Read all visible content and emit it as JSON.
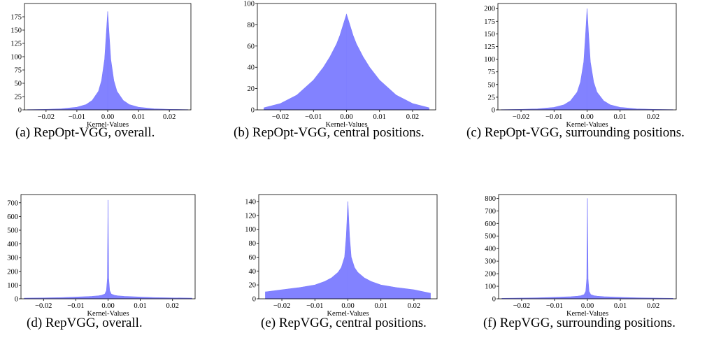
{
  "chart_data": [
    {
      "id": "a",
      "type": "area",
      "caption": "(a) RepOpt-VGG, overall.",
      "xlabel": "Kernel-Values",
      "ylabel": "",
      "xlim": [
        -0.027,
        0.027
      ],
      "ylim": [
        0,
        200
      ],
      "xticks": [
        -0.02,
        -0.01,
        0.0,
        0.01,
        0.02
      ],
      "xtick_labels": [
        "−0.02",
        "−0.01",
        "0.00",
        "0.01",
        "0.02"
      ],
      "yticks": [
        0,
        25,
        50,
        75,
        100,
        125,
        150,
        175
      ],
      "ytick_labels": [
        "0",
        "25",
        "50",
        "75",
        "100",
        "125",
        "150",
        "175"
      ],
      "color": "#7b7bff",
      "grid": false,
      "x": [
        -0.026,
        -0.02,
        -0.015,
        -0.01,
        -0.007,
        -0.005,
        -0.003,
        -0.002,
        -0.001,
        -0.0005,
        0.0,
        0.0005,
        0.001,
        0.002,
        0.003,
        0.005,
        0.007,
        0.01,
        0.015,
        0.02,
        0.026
      ],
      "y": [
        0.5,
        1,
        2,
        5,
        10,
        18,
        35,
        55,
        95,
        140,
        185,
        140,
        95,
        55,
        35,
        18,
        10,
        5,
        2,
        1,
        0.5
      ]
    },
    {
      "id": "b",
      "type": "area",
      "caption": "(b) RepOpt-VGG, central positions.",
      "xlabel": "Kernel-Values",
      "ylabel": "",
      "xlim": [
        -0.027,
        0.027
      ],
      "ylim": [
        0,
        100
      ],
      "xticks": [
        -0.02,
        -0.01,
        0.0,
        0.01,
        0.02
      ],
      "xtick_labels": [
        "−0.02",
        "−0.01",
        "0.00",
        "0.01",
        "0.02"
      ],
      "yticks": [
        0,
        20,
        40,
        60,
        80,
        100
      ],
      "ytick_labels": [
        "0",
        "20",
        "40",
        "60",
        "80",
        "100"
      ],
      "color": "#7b7bff",
      "grid": false,
      "x": [
        -0.025,
        -0.02,
        -0.015,
        -0.01,
        -0.007,
        -0.005,
        -0.003,
        -0.002,
        -0.001,
        0.0,
        0.001,
        0.002,
        0.003,
        0.005,
        0.007,
        0.01,
        0.015,
        0.02,
        0.025
      ],
      "y": [
        2,
        6,
        14,
        28,
        40,
        50,
        62,
        70,
        80,
        90,
        80,
        70,
        62,
        50,
        40,
        28,
        14,
        6,
        2
      ]
    },
    {
      "id": "c",
      "type": "area",
      "caption": "(c) RepOpt-VGG, surrounding positions.",
      "xlabel": "Kernel-Values",
      "ylabel": "",
      "xlim": [
        -0.027,
        0.027
      ],
      "ylim": [
        0,
        210
      ],
      "xticks": [
        -0.02,
        -0.01,
        0.0,
        0.01,
        0.02
      ],
      "xtick_labels": [
        "−0.02",
        "−0.01",
        "0.00",
        "0.01",
        "0.02"
      ],
      "yticks": [
        0,
        25,
        50,
        75,
        100,
        125,
        150,
        175,
        200
      ],
      "ytick_labels": [
        "0",
        "25",
        "50",
        "75",
        "100",
        "125",
        "150",
        "175",
        "200"
      ],
      "color": "#7b7bff",
      "grid": false,
      "x": [
        -0.026,
        -0.02,
        -0.015,
        -0.01,
        -0.007,
        -0.005,
        -0.003,
        -0.002,
        -0.001,
        -0.0005,
        0.0,
        0.0005,
        0.001,
        0.002,
        0.003,
        0.005,
        0.007,
        0.01,
        0.015,
        0.02,
        0.026
      ],
      "y": [
        0.5,
        1,
        2,
        5,
        10,
        18,
        35,
        55,
        95,
        145,
        200,
        145,
        95,
        55,
        35,
        18,
        10,
        5,
        2,
        1,
        0.5
      ]
    },
    {
      "id": "d",
      "type": "area",
      "caption": "(d) RepVGG, overall.",
      "xlabel": "Kernel-Values",
      "ylabel": "",
      "xlim": [
        -0.027,
        0.027
      ],
      "ylim": [
        0,
        760
      ],
      "xticks": [
        -0.02,
        -0.01,
        0.0,
        0.01,
        0.02
      ],
      "xtick_labels": [
        "−0.02",
        "−0.01",
        "0.00",
        "0.01",
        "0.02"
      ],
      "yticks": [
        0,
        100,
        200,
        300,
        400,
        500,
        600,
        700
      ],
      "ytick_labels": [
        "0",
        "100",
        "200",
        "300",
        "400",
        "500",
        "600",
        "700"
      ],
      "color": "#7b7bff",
      "grid": false,
      "x": [
        -0.026,
        -0.02,
        -0.015,
        -0.01,
        -0.005,
        -0.003,
        -0.002,
        -0.001,
        -0.0005,
        -0.0002,
        0.0,
        0.0002,
        0.0005,
        0.001,
        0.002,
        0.003,
        0.005,
        0.01,
        0.015,
        0.02,
        0.026
      ],
      "y": [
        5,
        7,
        9,
        13,
        18,
        22,
        26,
        35,
        60,
        150,
        720,
        150,
        60,
        35,
        26,
        22,
        18,
        13,
        9,
        7,
        5
      ]
    },
    {
      "id": "e",
      "type": "area",
      "caption": "(e) RepVGG, central positions.",
      "xlabel": "Kernel-Values",
      "ylabel": "",
      "xlim": [
        -0.027,
        0.027
      ],
      "ylim": [
        0,
        150
      ],
      "xticks": [
        -0.02,
        -0.01,
        0.0,
        0.01,
        0.02
      ],
      "xtick_labels": [
        "−0.02",
        "−0.01",
        "0.00",
        "0.01",
        "0.02"
      ],
      "yticks": [
        0,
        20,
        40,
        60,
        80,
        100,
        120,
        140
      ],
      "ytick_labels": [
        "0",
        "20",
        "40",
        "60",
        "80",
        "100",
        "120",
        "140"
      ],
      "color": "#7b7bff",
      "grid": false,
      "x": [
        -0.025,
        -0.02,
        -0.015,
        -0.01,
        -0.007,
        -0.005,
        -0.003,
        -0.002,
        -0.001,
        -0.0005,
        0.0,
        0.0005,
        0.001,
        0.002,
        0.003,
        0.005,
        0.007,
        0.01,
        0.015,
        0.02,
        0.025
      ],
      "y": [
        10,
        13,
        16,
        20,
        25,
        30,
        38,
        45,
        60,
        90,
        140,
        90,
        60,
        45,
        38,
        30,
        25,
        20,
        16,
        13,
        8
      ]
    },
    {
      "id": "f",
      "type": "area",
      "caption": "(f) RepVGG, surrounding positions.",
      "xlabel": "Kernel-Values",
      "ylabel": "",
      "xlim": [
        -0.027,
        0.027
      ],
      "ylim": [
        0,
        830
      ],
      "xticks": [
        -0.02,
        -0.01,
        0.0,
        0.01,
        0.02
      ],
      "xtick_labels": [
        "−0.02",
        "−0.01",
        "0.00",
        "0.01",
        "0.02"
      ],
      "yticks": [
        0,
        100,
        200,
        300,
        400,
        500,
        600,
        700,
        800
      ],
      "ytick_labels": [
        "0",
        "100",
        "200",
        "300",
        "400",
        "500",
        "600",
        "700",
        "800"
      ],
      "color": "#7b7bff",
      "grid": false,
      "x": [
        -0.026,
        -0.02,
        -0.015,
        -0.01,
        -0.005,
        -0.003,
        -0.002,
        -0.001,
        -0.0005,
        -0.0002,
        0.0,
        0.0002,
        0.0005,
        0.001,
        0.002,
        0.003,
        0.005,
        0.01,
        0.015,
        0.02,
        0.026
      ],
      "y": [
        4,
        6,
        8,
        12,
        17,
        21,
        25,
        34,
        60,
        160,
        800,
        160,
        60,
        34,
        25,
        21,
        17,
        12,
        8,
        6,
        4
      ]
    }
  ]
}
